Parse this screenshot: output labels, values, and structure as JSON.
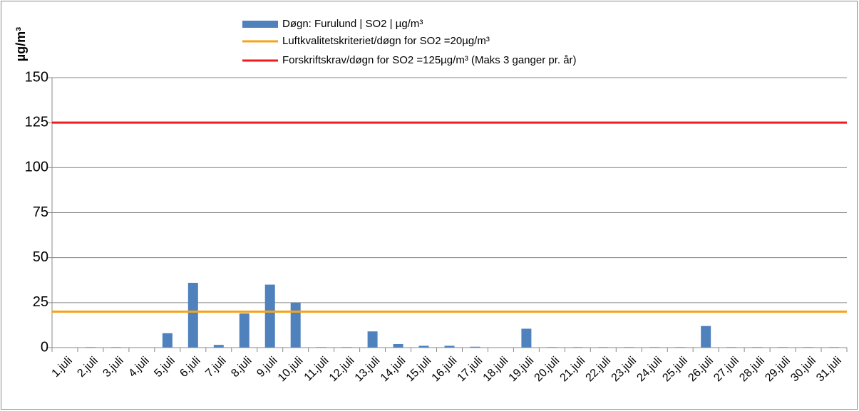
{
  "chart_data": {
    "type": "bar",
    "y_axis_label": "µg/m³",
    "categories": [
      "1.juli",
      "2.juli",
      "3.juli",
      "4.juli",
      "5.juli",
      "6.juli",
      "7.juli",
      "8.juli",
      "9.juli",
      "10.juli",
      "11.juli",
      "12.juli",
      "13.juli",
      "14.juli",
      "15.juli",
      "16.juli",
      "17.juli",
      "18.juli",
      "19.juli",
      "20.juli",
      "21.juli",
      "22.juli",
      "23.juli",
      "24.juli",
      "25.juli",
      "26.juli",
      "27.juli",
      "28.juli",
      "29.juli",
      "30.juli",
      "31.juli"
    ],
    "series": [
      {
        "name": "Døgn: Furulund | SO2 | µg/m³",
        "color": "#4f81bd",
        "values": [
          null,
          0.3,
          0.3,
          null,
          8,
          36,
          1.5,
          19,
          35,
          25,
          0.3,
          0.3,
          9,
          2,
          1,
          1,
          0.5,
          null,
          10.5,
          0.3,
          0.3,
          0.3,
          0.3,
          0.3,
          0.3,
          12,
          0.3,
          0.3,
          0.3,
          0.3,
          0.3
        ]
      }
    ],
    "reference_lines": [
      {
        "name": "Luftkvalitetskriteriet/døgn for SO2 =20µg/m³",
        "value": 20,
        "color": "#f5a31a"
      },
      {
        "name": "Forskriftskrav/døgn for SO2 =125µg/m³  (Maks 3 ganger pr. år)",
        "value": 125,
        "color": "#ee1c1c"
      }
    ],
    "ylim": [
      0,
      150
    ],
    "yticks": [
      0,
      25,
      50,
      75,
      100,
      125,
      150
    ],
    "grid": true
  }
}
